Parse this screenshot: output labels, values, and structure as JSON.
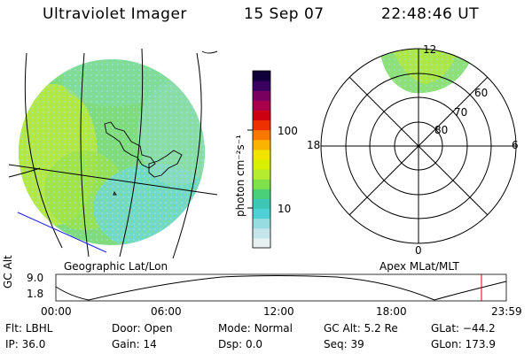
{
  "header": {
    "instrument": "Ultraviolet Imager",
    "date": "15 Sep 07",
    "time": "22:48:46 UT"
  },
  "colorbar": {
    "unit_label": "photon cm⁻²s⁻¹",
    "ticks": [
      {
        "value": 100,
        "label": "100"
      },
      {
        "value": 10,
        "label": "10"
      }
    ],
    "scale": "log",
    "colors": [
      "#e6f0f0",
      "#c4e6ea",
      "#96dce0",
      "#4fd0d6",
      "#3cc8b4",
      "#4bd07a",
      "#7ee04a",
      "#b6ec30",
      "#d8f000",
      "#f0e400",
      "#f8b400",
      "#f77800",
      "#ee3000",
      "#cc0010",
      "#a8004a",
      "#7a0060",
      "#3a0060",
      "#10003a"
    ]
  },
  "geo_panel": {
    "label": "Geographic Lat/Lon"
  },
  "polar_panel": {
    "label": "Apex MLat/MLT",
    "mlt_labels": {
      "top": "12",
      "left": "18",
      "right": "6",
      "bottom": "0"
    },
    "lat_labels": [
      "80",
      "70",
      "60"
    ]
  },
  "altitude_strip": {
    "ylabel": "GC Alt",
    "yticks": [
      "9.0",
      "1.8"
    ],
    "xticks": [
      "00:00",
      "06:00",
      "12:00",
      "18:00",
      "23:59"
    ],
    "marker_color": "#e00000"
  },
  "info": {
    "row1": [
      {
        "label": "Flt:",
        "value": "LBHL"
      },
      {
        "label": "Door:",
        "value": "Open"
      },
      {
        "label": "Mode:",
        "value": "Normal"
      },
      {
        "label": "GC Alt:",
        "value": "5.2 Re"
      },
      {
        "label": "GLat:",
        "value": "−44.2"
      }
    ],
    "row2": [
      {
        "label": "IP:",
        "value": "36.0"
      },
      {
        "label": "Gain:",
        "value": "14"
      },
      {
        "label": "Dsp:",
        "value": "0.0"
      },
      {
        "label": "Seq:",
        "value": "39"
      },
      {
        "label": "GLon:",
        "value": "173.9"
      }
    ]
  }
}
